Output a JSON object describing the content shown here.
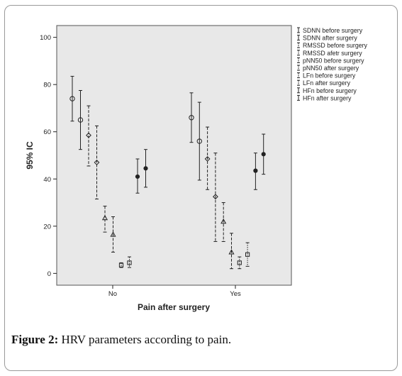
{
  "caption": {
    "label": "Figure 2:",
    "text": " HRV parameters according to pain."
  },
  "chart_data": {
    "type": "scatter",
    "subtype": "error-bar",
    "title": "",
    "xlabel": "Pain after surgery",
    "ylabel": "95% IC",
    "categories": [
      "No",
      "Yes"
    ],
    "ylim": [
      -5,
      105
    ],
    "yticks": [
      0,
      20,
      40,
      60,
      80,
      100
    ],
    "legend_position": "right",
    "series": [
      {
        "name": "SDNN before surgery",
        "marker": "circle-open",
        "line": "solid",
        "mean": [
          74,
          66
        ],
        "lower": [
          64.5,
          55.5
        ],
        "upper": [
          83.5,
          76.5
        ]
      },
      {
        "name": "SDNN after surgery",
        "marker": "circle-open",
        "line": "solid",
        "mean": [
          65,
          56
        ],
        "lower": [
          52.5,
          39.5
        ],
        "upper": [
          77.5,
          72.5
        ]
      },
      {
        "name": "RMSSD before surgery",
        "marker": "diamond-open",
        "line": "dashed",
        "mean": [
          58.5,
          48.5
        ],
        "lower": [
          45.5,
          35.5
        ],
        "upper": [
          71,
          62
        ]
      },
      {
        "name": "RMSSD afetr surgery",
        "marker": "diamond-open",
        "line": "dashed",
        "mean": [
          47,
          32.5
        ],
        "lower": [
          31.5,
          13.5
        ],
        "upper": [
          62.5,
          51
        ]
      },
      {
        "name": "pNN50 before surgery",
        "marker": "triangle",
        "line": "dashed",
        "mean": [
          23.5,
          22
        ],
        "lower": [
          17.5,
          13.5
        ],
        "upper": [
          28.5,
          30
        ]
      },
      {
        "name": "pNN50 after surgery",
        "marker": "triangle",
        "line": "dashed",
        "mean": [
          16.5,
          9
        ],
        "lower": [
          9,
          2
        ],
        "upper": [
          24,
          17
        ]
      },
      {
        "name": "LFn before surgery",
        "marker": "square-open",
        "line": "dotted",
        "mean": [
          3.5,
          4.5
        ],
        "lower": [
          2.5,
          2
        ],
        "upper": [
          4.5,
          7
        ]
      },
      {
        "name": "LFn after surgery",
        "marker": "square-open",
        "line": "dotted",
        "mean": [
          4.5,
          8
        ],
        "lower": [
          2.5,
          3
        ],
        "upper": [
          7,
          13
        ]
      },
      {
        "name": "HFn before surgery",
        "marker": "circle-filled",
        "line": "solid",
        "mean": [
          41,
          43.5
        ],
        "lower": [
          34,
          35.5
        ],
        "upper": [
          48.5,
          51
        ]
      },
      {
        "name": "HFn after surgery",
        "marker": "circle-filled",
        "line": "solid",
        "mean": [
          44.5,
          50.5
        ],
        "lower": [
          36.5,
          42
        ],
        "upper": [
          52.5,
          59
        ]
      }
    ],
    "colors": {
      "plot_background": "#e8e8e8",
      "ink": "#222222"
    }
  }
}
